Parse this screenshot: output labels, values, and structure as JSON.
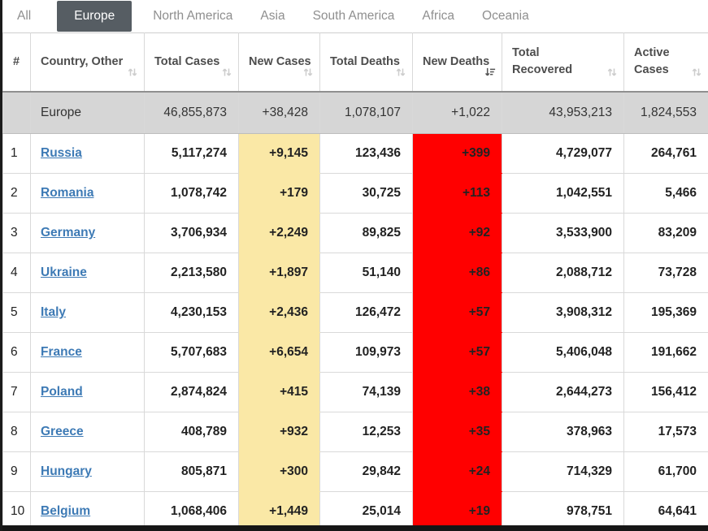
{
  "tabs": [
    {
      "label": "All",
      "active": false
    },
    {
      "label": "Europe",
      "active": true
    },
    {
      "label": "North America",
      "active": false
    },
    {
      "label": "Asia",
      "active": false
    },
    {
      "label": "South America",
      "active": false
    },
    {
      "label": "Africa",
      "active": false
    },
    {
      "label": "Oceania",
      "active": false
    }
  ],
  "table": {
    "columns": [
      {
        "key": "rank",
        "label": "#",
        "sortable": false,
        "sort_icon": ""
      },
      {
        "key": "country",
        "label": "Country, Other",
        "sortable": true,
        "sort_icon": "sort-both-icon"
      },
      {
        "key": "total_cases",
        "label": "Total Cases",
        "sortable": true,
        "sort_icon": "sort-both-icon"
      },
      {
        "key": "new_cases",
        "label": "New Cases",
        "sortable": true,
        "sort_icon": "sort-both-icon"
      },
      {
        "key": "total_deaths",
        "label": "Total Deaths",
        "sortable": true,
        "sort_icon": "sort-both-icon"
      },
      {
        "key": "new_deaths",
        "label": "New Deaths",
        "sortable": true,
        "sort_icon": "sort-desc-icon"
      },
      {
        "key": "total_recovered",
        "label": "Total Recovered",
        "sortable": true,
        "sort_icon": "sort-both-icon"
      },
      {
        "key": "active_cases",
        "label": "Active Cases",
        "sortable": true,
        "sort_icon": "sort-both-icon"
      }
    ],
    "totals_row": {
      "rank": "",
      "country": "Europe",
      "total_cases": "46,855,873",
      "new_cases": "+38,428",
      "total_deaths": "1,078,107",
      "new_deaths": "+1,022",
      "total_recovered": "43,953,213",
      "active_cases": "1,824,553"
    },
    "rows": [
      {
        "rank": "1",
        "country": "Russia",
        "total_cases": "5,117,274",
        "new_cases": "+9,145",
        "total_deaths": "123,436",
        "new_deaths": "+399",
        "total_recovered": "4,729,077",
        "active_cases": "264,761"
      },
      {
        "rank": "2",
        "country": "Romania",
        "total_cases": "1,078,742",
        "new_cases": "+179",
        "total_deaths": "30,725",
        "new_deaths": "+113",
        "total_recovered": "1,042,551",
        "active_cases": "5,466"
      },
      {
        "rank": "3",
        "country": "Germany",
        "total_cases": "3,706,934",
        "new_cases": "+2,249",
        "total_deaths": "89,825",
        "new_deaths": "+92",
        "total_recovered": "3,533,900",
        "active_cases": "83,209"
      },
      {
        "rank": "4",
        "country": "Ukraine",
        "total_cases": "2,213,580",
        "new_cases": "+1,897",
        "total_deaths": "51,140",
        "new_deaths": "+86",
        "total_recovered": "2,088,712",
        "active_cases": "73,728"
      },
      {
        "rank": "5",
        "country": "Italy",
        "total_cases": "4,230,153",
        "new_cases": "+2,436",
        "total_deaths": "126,472",
        "new_deaths": "+57",
        "total_recovered": "3,908,312",
        "active_cases": "195,369"
      },
      {
        "rank": "6",
        "country": "France",
        "total_cases": "5,707,683",
        "new_cases": "+6,654",
        "total_deaths": "109,973",
        "new_deaths": "+57",
        "total_recovered": "5,406,048",
        "active_cases": "191,662"
      },
      {
        "rank": "7",
        "country": "Poland",
        "total_cases": "2,874,824",
        "new_cases": "+415",
        "total_deaths": "74,139",
        "new_deaths": "+38",
        "total_recovered": "2,644,273",
        "active_cases": "156,412"
      },
      {
        "rank": "8",
        "country": "Greece",
        "total_cases": "408,789",
        "new_cases": "+932",
        "total_deaths": "12,253",
        "new_deaths": "+35",
        "total_recovered": "378,963",
        "active_cases": "17,573"
      },
      {
        "rank": "9",
        "country": "Hungary",
        "total_cases": "805,871",
        "new_cases": "+300",
        "total_deaths": "29,842",
        "new_deaths": "+24",
        "total_recovered": "714,329",
        "active_cases": "61,700"
      },
      {
        "rank": "10",
        "country": "Belgium",
        "total_cases": "1,068,406",
        "new_cases": "+1,449",
        "total_deaths": "25,014",
        "new_deaths": "+19",
        "total_recovered": "978,751",
        "active_cases": "64,641"
      }
    ]
  },
  "colors": {
    "active_tab_bg": "#565d63",
    "new_cases_highlight": "#fae8a6",
    "new_deaths_highlight": "#ff0000",
    "totals_row_bg": "#d6d6d6",
    "country_link": "#3d7ab5"
  }
}
